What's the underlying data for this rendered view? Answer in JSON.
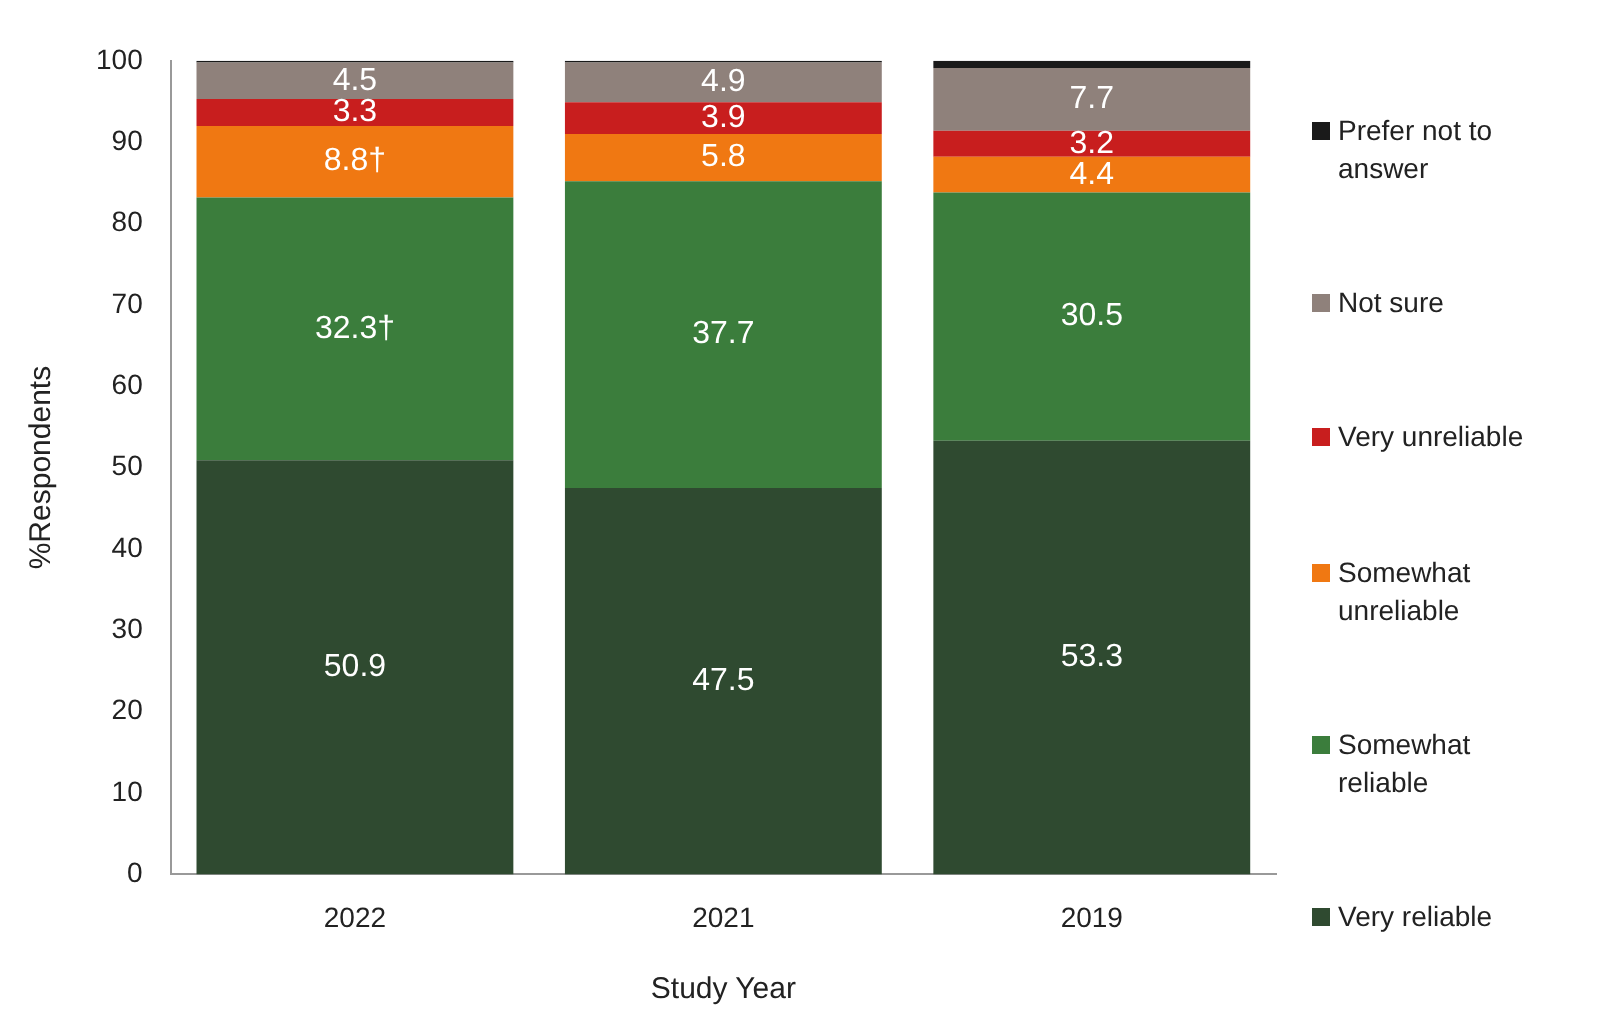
{
  "chart_data": {
    "type": "bar",
    "stacked": true,
    "xlabel": "Study Year",
    "ylabel": "%Respondents",
    "categories": [
      "2022",
      "2021",
      "2019"
    ],
    "ylim": [
      0,
      100
    ],
    "yticks": [
      0,
      10,
      20,
      30,
      40,
      50,
      60,
      70,
      80,
      90,
      100
    ],
    "grid": false,
    "legend": "right",
    "series": [
      {
        "name": "Very reliable",
        "color": "#2f4a30",
        "values": [
          50.9,
          47.5,
          53.3
        ],
        "value_labels": [
          "50.9",
          "47.5",
          "53.3"
        ]
      },
      {
        "name": "Somewhat reliable",
        "color": "#3b7d3c",
        "values": [
          32.3,
          37.7,
          30.5
        ],
        "value_labels": [
          "32.3†",
          "37.7",
          "30.5"
        ]
      },
      {
        "name": "Somewhat unreliable",
        "color": "#f07812",
        "values": [
          8.8,
          5.8,
          4.4
        ],
        "value_labels": [
          "8.8†",
          "5.8",
          "4.4"
        ]
      },
      {
        "name": "Very unreliable",
        "color": "#c81e1e",
        "values": [
          3.3,
          3.9,
          3.2
        ],
        "value_labels": [
          "3.3",
          "3.9",
          "3.2"
        ]
      },
      {
        "name": "Not sure",
        "color": "#8f817b",
        "values": [
          4.5,
          4.9,
          7.7
        ],
        "value_labels": [
          "4.5",
          "4.9",
          "7.7"
        ]
      },
      {
        "name": "Prefer not to answer",
        "color": "#1a1a1a",
        "values": [
          0.2,
          0.2,
          0.9
        ],
        "value_labels": [
          null,
          null,
          null
        ]
      }
    ]
  }
}
